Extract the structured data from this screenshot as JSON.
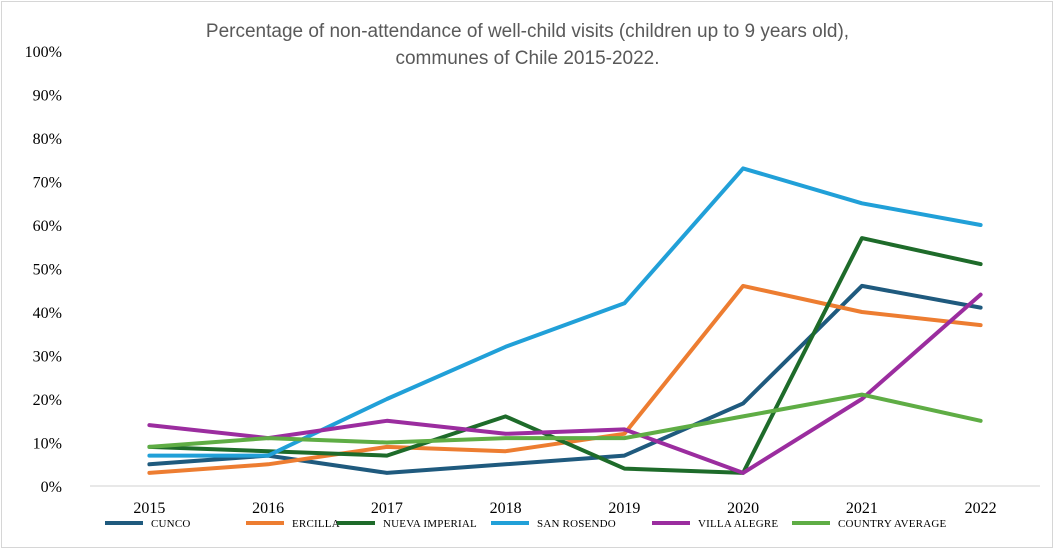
{
  "chart_data": {
    "type": "line",
    "title_line1": "Percentage of non-attendance of well-child visits (children up to 9 years old),",
    "title_line2": "communes of Chile 2015-2022.",
    "xlabel": "",
    "ylabel": "",
    "ylim": [
      0,
      100
    ],
    "y_ticks": [
      "0%",
      "10%",
      "20%",
      "30%",
      "40%",
      "50%",
      "60%",
      "70%",
      "80%",
      "90%",
      "100%"
    ],
    "categories": [
      "2015",
      "2016",
      "2017",
      "2018",
      "2019",
      "2020",
      "2021",
      "2022"
    ],
    "grid": false,
    "legend_position": "bottom",
    "series": [
      {
        "name": "CUNCO",
        "color": "#1f5a7e",
        "values": [
          5,
          7,
          3,
          5,
          7,
          19,
          46,
          41
        ]
      },
      {
        "name": "ERCILLA",
        "color": "#ed7d31",
        "values": [
          3,
          5,
          9,
          8,
          12,
          46,
          40,
          37
        ]
      },
      {
        "name": "NUEVA IMPERIAL",
        "color": "#1e6b2a",
        "values": [
          9,
          8,
          7,
          16,
          4,
          3,
          57,
          51
        ]
      },
      {
        "name": "SAN ROSENDO",
        "color": "#21a0d8",
        "values": [
          7,
          7,
          20,
          32,
          42,
          73,
          65,
          60
        ]
      },
      {
        "name": "VILLA ALEGRE",
        "color": "#9b2d9f",
        "values": [
          14,
          11,
          15,
          12,
          13,
          3,
          20,
          44
        ]
      },
      {
        "name": "COUNTRY AVERAGE",
        "color": "#5fad45",
        "values": [
          9,
          11,
          10,
          11,
          11,
          16,
          21,
          15
        ]
      }
    ]
  }
}
